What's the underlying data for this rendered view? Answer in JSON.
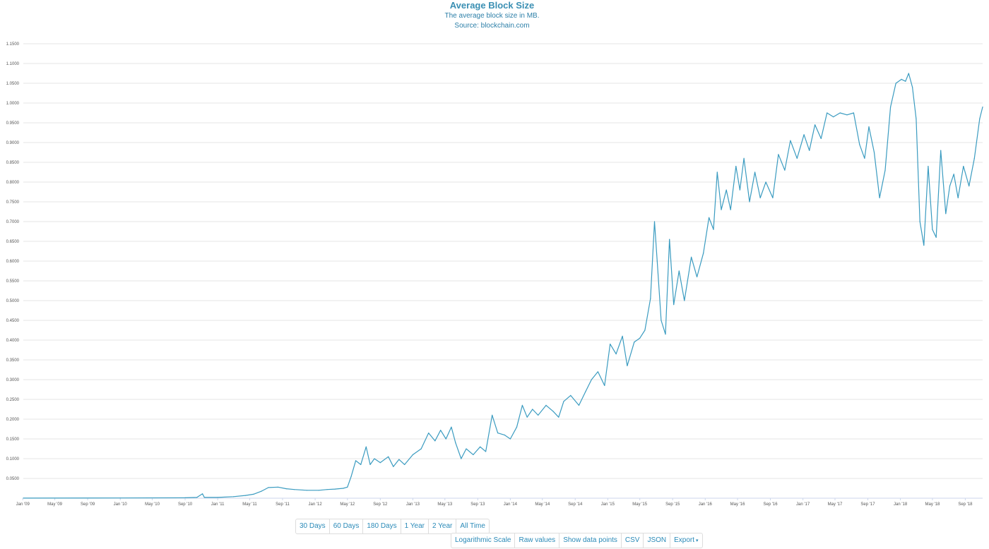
{
  "chart_data": {
    "type": "line",
    "title": "Average Block Size",
    "subtitle": "The average block size in MB.",
    "source": "Source: blockchain.com",
    "ylabel": "",
    "xlabel": "",
    "ylim": [
      0,
      1.15
    ],
    "xlim": [
      "2009-01-03",
      "2018-11-05"
    ],
    "grid": true,
    "legend": "none",
    "colors": {
      "line": "#3a9bc0",
      "grid": "#e6e6e6"
    },
    "y_ticks": [
      "0.0500",
      "0.1000",
      "0.1500",
      "0.2000",
      "0.2500",
      "0.3000",
      "0.3500",
      "0.4000",
      "0.4500",
      "0.5000",
      "0.5500",
      "0.6000",
      "0.6500",
      "0.7000",
      "0.7500",
      "0.8000",
      "0.8500",
      "0.9000",
      "0.9500",
      "1.0000",
      "1.0500",
      "1.1000",
      "1.1500"
    ],
    "x_ticks": [
      {
        "label": "Jan '09",
        "date": "2009-01-01"
      },
      {
        "label": "May '09",
        "date": "2009-05-01"
      },
      {
        "label": "Sep '09",
        "date": "2009-09-01"
      },
      {
        "label": "Jan '10",
        "date": "2010-01-01"
      },
      {
        "label": "May '10",
        "date": "2010-05-01"
      },
      {
        "label": "Sep '10",
        "date": "2010-09-01"
      },
      {
        "label": "Jan '11",
        "date": "2011-01-01"
      },
      {
        "label": "May '11",
        "date": "2011-05-01"
      },
      {
        "label": "Sep '11",
        "date": "2011-09-01"
      },
      {
        "label": "Jan '12",
        "date": "2012-01-01"
      },
      {
        "label": "May '12",
        "date": "2012-05-01"
      },
      {
        "label": "Sep '12",
        "date": "2012-09-01"
      },
      {
        "label": "Jan '13",
        "date": "2013-01-01"
      },
      {
        "label": "May '13",
        "date": "2013-05-01"
      },
      {
        "label": "Sep '13",
        "date": "2013-09-01"
      },
      {
        "label": "Jan '14",
        "date": "2014-01-01"
      },
      {
        "label": "May '14",
        "date": "2014-05-01"
      },
      {
        "label": "Sep '14",
        "date": "2014-09-01"
      },
      {
        "label": "Jan '15",
        "date": "2015-01-01"
      },
      {
        "label": "May '15",
        "date": "2015-05-01"
      },
      {
        "label": "Sep '15",
        "date": "2015-09-01"
      },
      {
        "label": "Jan '16",
        "date": "2016-01-01"
      },
      {
        "label": "May '16",
        "date": "2016-05-01"
      },
      {
        "label": "Sep '16",
        "date": "2016-09-01"
      },
      {
        "label": "Jan '17",
        "date": "2017-01-01"
      },
      {
        "label": "May '17",
        "date": "2017-05-01"
      },
      {
        "label": "Sep '17",
        "date": "2017-09-01"
      },
      {
        "label": "Jan '18",
        "date": "2018-01-01"
      },
      {
        "label": "May '18",
        "date": "2018-05-01"
      },
      {
        "label": "Sep '18",
        "date": "2018-09-01"
      }
    ],
    "series": [
      {
        "values": [
          [
            "2009-01-03",
            0.0002
          ],
          [
            "2010-01-01",
            0.0005
          ],
          [
            "2010-09-01",
            0.001
          ],
          [
            "2010-10-15",
            0.002
          ],
          [
            "2010-11-05",
            0.011
          ],
          [
            "2010-11-12",
            0.002
          ],
          [
            "2011-01-01",
            0.002
          ],
          [
            "2011-03-01",
            0.004
          ],
          [
            "2011-04-15",
            0.007
          ],
          [
            "2011-05-15",
            0.01
          ],
          [
            "2011-06-15",
            0.018
          ],
          [
            "2011-07-10",
            0.027
          ],
          [
            "2011-08-15",
            0.028
          ],
          [
            "2011-09-15",
            0.024
          ],
          [
            "2011-10-15",
            0.022
          ],
          [
            "2011-12-01",
            0.02
          ],
          [
            "2012-01-15",
            0.02
          ],
          [
            "2012-02-15",
            0.022
          ],
          [
            "2012-03-15",
            0.023
          ],
          [
            "2012-04-15",
            0.025
          ],
          [
            "2012-05-01",
            0.028
          ],
          [
            "2012-05-15",
            0.055
          ],
          [
            "2012-06-01",
            0.095
          ],
          [
            "2012-06-20",
            0.085
          ],
          [
            "2012-07-10",
            0.13
          ],
          [
            "2012-07-25",
            0.085
          ],
          [
            "2012-08-10",
            0.1
          ],
          [
            "2012-09-01",
            0.09
          ],
          [
            "2012-10-01",
            0.105
          ],
          [
            "2012-10-20",
            0.08
          ],
          [
            "2012-11-10",
            0.098
          ],
          [
            "2012-12-01",
            0.085
          ],
          [
            "2013-01-01",
            0.11
          ],
          [
            "2013-02-01",
            0.125
          ],
          [
            "2013-03-01",
            0.165
          ],
          [
            "2013-03-25",
            0.145
          ],
          [
            "2013-04-15",
            0.172
          ],
          [
            "2013-05-05",
            0.15
          ],
          [
            "2013-05-25",
            0.18
          ],
          [
            "2013-06-10",
            0.14
          ],
          [
            "2013-07-01",
            0.1
          ],
          [
            "2013-07-20",
            0.125
          ],
          [
            "2013-08-15",
            0.11
          ],
          [
            "2013-09-10",
            0.13
          ],
          [
            "2013-10-01",
            0.118
          ],
          [
            "2013-10-25",
            0.21
          ],
          [
            "2013-11-15",
            0.165
          ],
          [
            "2013-12-10",
            0.16
          ],
          [
            "2014-01-01",
            0.15
          ],
          [
            "2014-01-25",
            0.18
          ],
          [
            "2014-02-15",
            0.235
          ],
          [
            "2014-03-05",
            0.205
          ],
          [
            "2014-03-25",
            0.225
          ],
          [
            "2014-04-15",
            0.21
          ],
          [
            "2014-05-15",
            0.235
          ],
          [
            "2014-06-10",
            0.22
          ],
          [
            "2014-07-01",
            0.205
          ],
          [
            "2014-07-20",
            0.245
          ],
          [
            "2014-08-15",
            0.26
          ],
          [
            "2014-09-15",
            0.235
          ],
          [
            "2014-10-10",
            0.27
          ],
          [
            "2014-11-01",
            0.3
          ],
          [
            "2014-11-25",
            0.32
          ],
          [
            "2014-12-20",
            0.285
          ],
          [
            "2015-01-10",
            0.39
          ],
          [
            "2015-02-01",
            0.365
          ],
          [
            "2015-02-25",
            0.41
          ],
          [
            "2015-03-15",
            0.335
          ],
          [
            "2015-04-10",
            0.395
          ],
          [
            "2015-05-01",
            0.405
          ],
          [
            "2015-05-20",
            0.425
          ],
          [
            "2015-06-10",
            0.505
          ],
          [
            "2015-06-25",
            0.7
          ],
          [
            "2015-07-05",
            0.6
          ],
          [
            "2015-07-20",
            0.45
          ],
          [
            "2015-08-05",
            0.415
          ],
          [
            "2015-08-20",
            0.655
          ],
          [
            "2015-09-05",
            0.49
          ],
          [
            "2015-09-25",
            0.575
          ],
          [
            "2015-10-15",
            0.5
          ],
          [
            "2015-11-10",
            0.61
          ],
          [
            "2015-12-01",
            0.56
          ],
          [
            "2015-12-25",
            0.62
          ],
          [
            "2016-01-15",
            0.71
          ],
          [
            "2016-02-01",
            0.68
          ],
          [
            "2016-02-15",
            0.825
          ],
          [
            "2016-03-01",
            0.73
          ],
          [
            "2016-03-20",
            0.78
          ],
          [
            "2016-04-05",
            0.73
          ],
          [
            "2016-04-25",
            0.84
          ],
          [
            "2016-05-10",
            0.78
          ],
          [
            "2016-05-25",
            0.86
          ],
          [
            "2016-06-15",
            0.75
          ],
          [
            "2016-07-05",
            0.825
          ],
          [
            "2016-07-25",
            0.76
          ],
          [
            "2016-08-15",
            0.8
          ],
          [
            "2016-09-10",
            0.76
          ],
          [
            "2016-10-01",
            0.87
          ],
          [
            "2016-10-25",
            0.83
          ],
          [
            "2016-11-15",
            0.905
          ],
          [
            "2016-12-10",
            0.86
          ],
          [
            "2017-01-05",
            0.92
          ],
          [
            "2017-01-25",
            0.88
          ],
          [
            "2017-02-15",
            0.945
          ],
          [
            "2017-03-10",
            0.91
          ],
          [
            "2017-04-01",
            0.975
          ],
          [
            "2017-04-25",
            0.965
          ],
          [
            "2017-05-20",
            0.975
          ],
          [
            "2017-06-15",
            0.97
          ],
          [
            "2017-07-10",
            0.975
          ],
          [
            "2017-08-01",
            0.895
          ],
          [
            "2017-08-20",
            0.86
          ],
          [
            "2017-09-05",
            0.94
          ],
          [
            "2017-09-25",
            0.875
          ],
          [
            "2017-10-15",
            0.76
          ],
          [
            "2017-11-05",
            0.83
          ],
          [
            "2017-11-25",
            0.99
          ],
          [
            "2017-12-15",
            1.05
          ],
          [
            "2018-01-05",
            1.06
          ],
          [
            "2018-01-20",
            1.055
          ],
          [
            "2018-02-01",
            1.075
          ],
          [
            "2018-02-15",
            1.04
          ],
          [
            "2018-03-01",
            0.96
          ],
          [
            "2018-03-15",
            0.7
          ],
          [
            "2018-03-30",
            0.64
          ],
          [
            "2018-04-15",
            0.84
          ],
          [
            "2018-05-01",
            0.68
          ],
          [
            "2018-05-15",
            0.66
          ],
          [
            "2018-06-01",
            0.88
          ],
          [
            "2018-06-20",
            0.72
          ],
          [
            "2018-07-05",
            0.79
          ],
          [
            "2018-07-20",
            0.82
          ],
          [
            "2018-08-05",
            0.76
          ],
          [
            "2018-08-25",
            0.84
          ],
          [
            "2018-09-15",
            0.79
          ],
          [
            "2018-10-05",
            0.86
          ],
          [
            "2018-10-25",
            0.96
          ],
          [
            "2018-11-05",
            0.99
          ]
        ]
      }
    ]
  },
  "range_buttons": [
    "30 Days",
    "60 Days",
    "180 Days",
    "1 Year",
    "2 Year",
    "All Time"
  ],
  "tool_buttons": {
    "log_scale": "Logarithmic Scale",
    "raw_values": "Raw values",
    "show_points": "Show data points",
    "csv": "CSV",
    "json": "JSON",
    "export": "Export"
  }
}
